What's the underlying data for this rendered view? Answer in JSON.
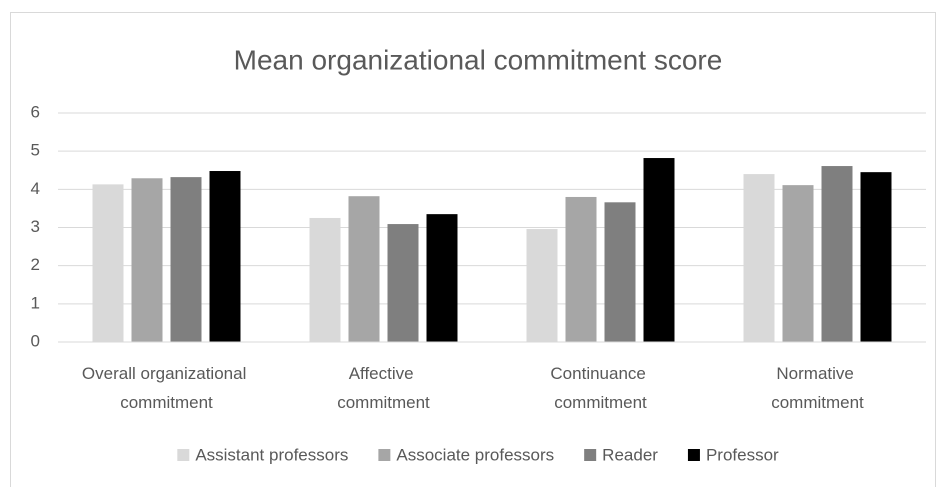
{
  "chart_data": {
    "type": "bar",
    "title": "Mean organizational commitment score",
    "categories": [
      "Overall organizational commitment",
      "Affective commitment",
      "Continuance commitment",
      "Normative commitment"
    ],
    "series": [
      {
        "name": "Assistant professors",
        "color": "#d9d9d9",
        "values": [
          4.13,
          3.25,
          2.96,
          4.4
        ]
      },
      {
        "name": "Associate professors",
        "color": "#a6a6a6",
        "values": [
          4.29,
          3.82,
          3.8,
          4.11
        ]
      },
      {
        "name": "Reader",
        "color": "#7f7f7f",
        "values": [
          4.32,
          3.09,
          3.66,
          4.61
        ]
      },
      {
        "name": "Professor",
        "color": "#000000",
        "values": [
          4.48,
          3.35,
          4.82,
          4.45
        ]
      }
    ],
    "ylim": [
      0,
      6
    ],
    "yticks": [
      0,
      1,
      2,
      3,
      4,
      5,
      6
    ],
    "grid": true,
    "legend": "bottom"
  }
}
